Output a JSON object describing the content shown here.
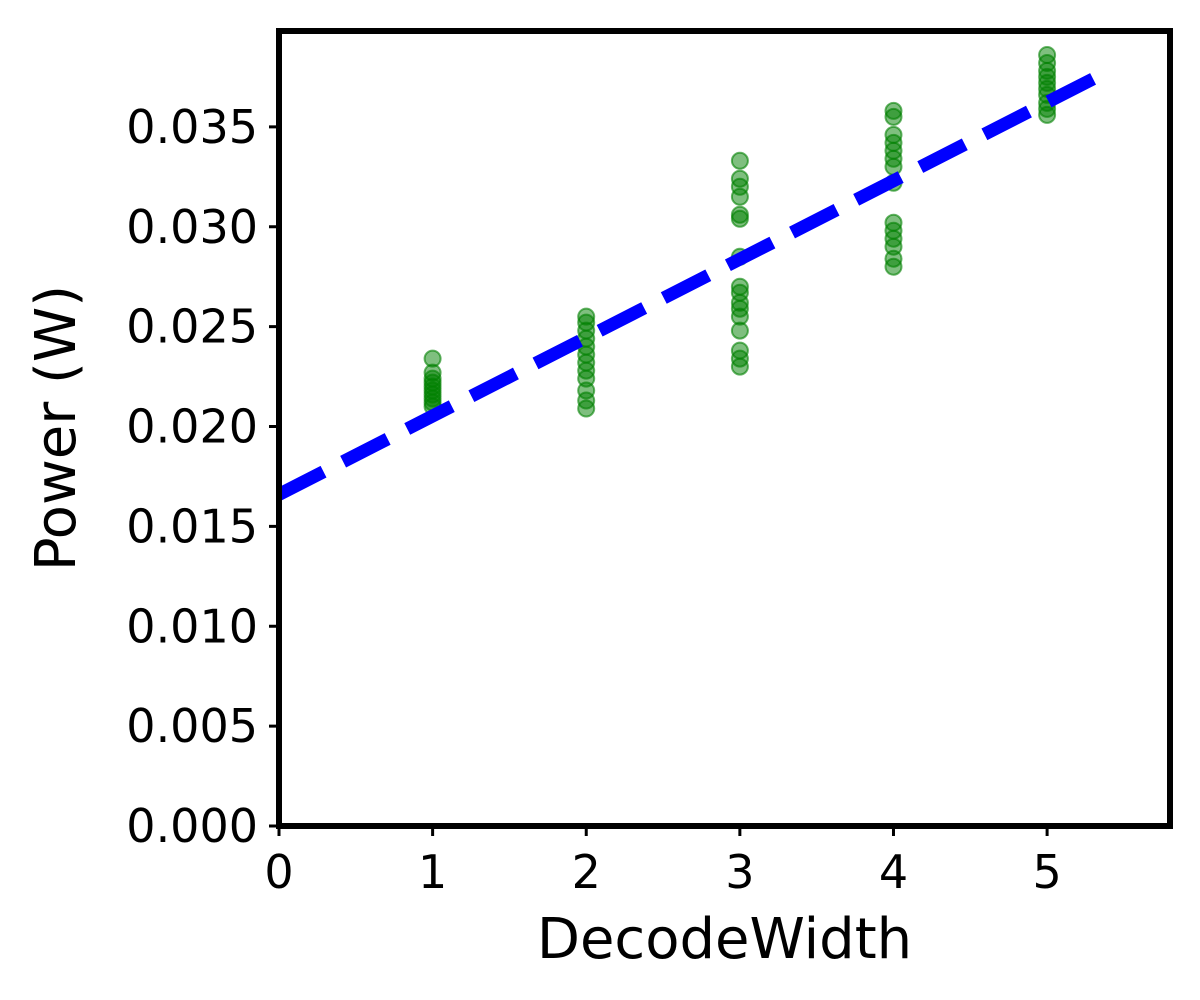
{
  "chart_data": {
    "type": "scatter",
    "xlabel": "DecodeWidth",
    "ylabel": "Power (W)",
    "xlim": [
      0,
      5.8
    ],
    "ylim": [
      0,
      0.0398
    ],
    "x_ticks": [
      0,
      1,
      2,
      3,
      4,
      5
    ],
    "x_tick_labels": [
      "0",
      "1",
      "2",
      "3",
      "4",
      "5"
    ],
    "y_ticks": [
      0.0,
      0.005,
      0.01,
      0.015,
      0.02,
      0.025,
      0.03,
      0.035
    ],
    "y_tick_labels": [
      "0.000",
      "0.005",
      "0.010",
      "0.015",
      "0.020",
      "0.025",
      "0.030",
      "0.035"
    ],
    "grid": false,
    "colors": {
      "points": "#008000",
      "fit_line": "#0000ff",
      "frame": "#000000"
    },
    "points": [
      {
        "x": 1,
        "y": 0.0234
      },
      {
        "x": 1,
        "y": 0.0227
      },
      {
        "x": 1,
        "y": 0.0224
      },
      {
        "x": 1,
        "y": 0.0222
      },
      {
        "x": 1,
        "y": 0.022
      },
      {
        "x": 1,
        "y": 0.0218
      },
      {
        "x": 1,
        "y": 0.0216
      },
      {
        "x": 1,
        "y": 0.0214
      },
      {
        "x": 1,
        "y": 0.0212
      },
      {
        "x": 1,
        "y": 0.021
      },
      {
        "x": 2,
        "y": 0.0255
      },
      {
        "x": 2,
        "y": 0.0252
      },
      {
        "x": 2,
        "y": 0.0248
      },
      {
        "x": 2,
        "y": 0.0244
      },
      {
        "x": 2,
        "y": 0.024
      },
      {
        "x": 2,
        "y": 0.0236
      },
      {
        "x": 2,
        "y": 0.0232
      },
      {
        "x": 2,
        "y": 0.0228
      },
      {
        "x": 2,
        "y": 0.0224
      },
      {
        "x": 2,
        "y": 0.0218
      },
      {
        "x": 2,
        "y": 0.0213
      },
      {
        "x": 2,
        "y": 0.0209
      },
      {
        "x": 3,
        "y": 0.0333
      },
      {
        "x": 3,
        "y": 0.0324
      },
      {
        "x": 3,
        "y": 0.032
      },
      {
        "x": 3,
        "y": 0.0315
      },
      {
        "x": 3,
        "y": 0.0306
      },
      {
        "x": 3,
        "y": 0.0304
      },
      {
        "x": 3,
        "y": 0.0285
      },
      {
        "x": 3,
        "y": 0.027
      },
      {
        "x": 3,
        "y": 0.0267
      },
      {
        "x": 3,
        "y": 0.0262
      },
      {
        "x": 3,
        "y": 0.0259
      },
      {
        "x": 3,
        "y": 0.0255
      },
      {
        "x": 3,
        "y": 0.0248
      },
      {
        "x": 3,
        "y": 0.0238
      },
      {
        "x": 3,
        "y": 0.0234
      },
      {
        "x": 3,
        "y": 0.023
      },
      {
        "x": 4,
        "y": 0.0358
      },
      {
        "x": 4,
        "y": 0.0355
      },
      {
        "x": 4,
        "y": 0.0346
      },
      {
        "x": 4,
        "y": 0.0342
      },
      {
        "x": 4,
        "y": 0.0338
      },
      {
        "x": 4,
        "y": 0.0334
      },
      {
        "x": 4,
        "y": 0.033
      },
      {
        "x": 4,
        "y": 0.0322
      },
      {
        "x": 4,
        "y": 0.0302
      },
      {
        "x": 4,
        "y": 0.0298
      },
      {
        "x": 4,
        "y": 0.0294
      },
      {
        "x": 4,
        "y": 0.029
      },
      {
        "x": 4,
        "y": 0.0284
      },
      {
        "x": 4,
        "y": 0.028
      },
      {
        "x": 5,
        "y": 0.0386
      },
      {
        "x": 5,
        "y": 0.0382
      },
      {
        "x": 5,
        "y": 0.0378
      },
      {
        "x": 5,
        "y": 0.0375
      },
      {
        "x": 5,
        "y": 0.0372
      },
      {
        "x": 5,
        "y": 0.0369
      },
      {
        "x": 5,
        "y": 0.0366
      },
      {
        "x": 5,
        "y": 0.0362
      },
      {
        "x": 5,
        "y": 0.0359
      },
      {
        "x": 5,
        "y": 0.0356
      }
    ],
    "fit_line": {
      "style": "dashed",
      "points": [
        [
          0,
          0.0166
        ],
        [
          5.4,
          0.0378
        ]
      ]
    }
  }
}
